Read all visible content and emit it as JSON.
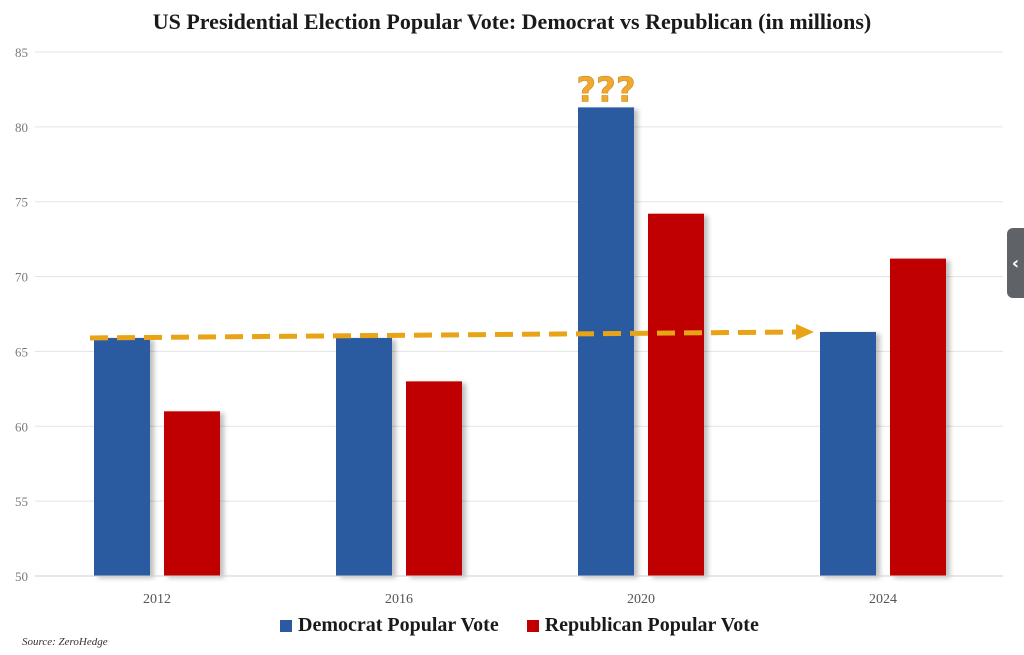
{
  "chart_data": {
    "type": "bar",
    "title": "US Presidential Election Popular Vote: Democrat vs Republican (in millions)",
    "categories": [
      "2012",
      "2016",
      "2020",
      "2024"
    ],
    "series": [
      {
        "name": "Democrat Popular Vote",
        "color": "#2c5aa0",
        "values": [
          65.9,
          65.9,
          81.3,
          66.3
        ]
      },
      {
        "name": "Republican Popular Vote",
        "color": "#c00000",
        "values": [
          61.0,
          63.0,
          74.2,
          71.2
        ]
      }
    ],
    "ylim": [
      50,
      85
    ],
    "yticks": [
      "50",
      "55",
      "60",
      "65",
      "70",
      "75",
      "80",
      "85"
    ],
    "grid": true,
    "legend": "bottom",
    "annotations": [
      {
        "text": "???",
        "color": "#f0a830",
        "category": "2020",
        "series": "Democrat Popular Vote"
      },
      {
        "type": "dashed-arrow",
        "color": "#e8a317",
        "from": {
          "category": "2012",
          "y": 65.9
        },
        "to": {
          "category": "2024",
          "y": 66.3
        }
      }
    ]
  },
  "source": "Source: ZeroHedge",
  "side_handle": {
    "icon": "chevron-left-icon",
    "glyph": "‹"
  }
}
